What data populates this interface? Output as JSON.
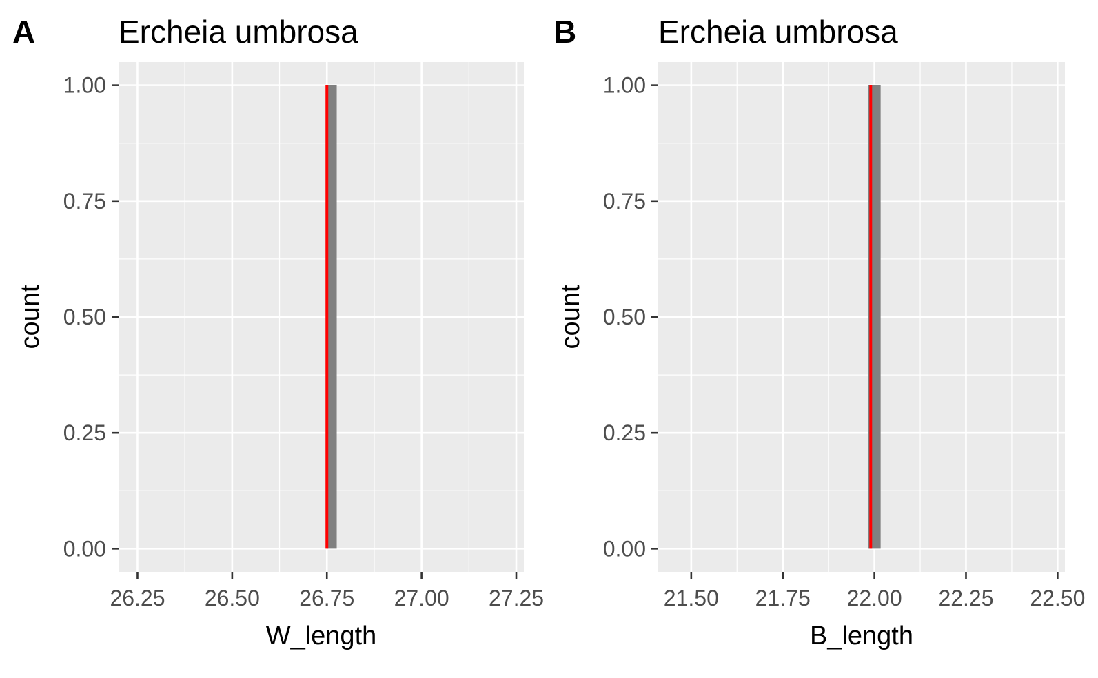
{
  "chart_data": [
    {
      "type": "bar",
      "panel_tag": "A",
      "title": "Ercheia umbrosa",
      "xlabel": "W_length",
      "ylabel": "count",
      "xlim": [
        26.2,
        27.27
      ],
      "ylim": [
        -0.05,
        1.05
      ],
      "x_ticks": [
        "26.25",
        "26.50",
        "26.75",
        "27.00",
        "27.25"
      ],
      "y_ticks": [
        "0.00",
        "0.25",
        "0.50",
        "0.75",
        "1.00"
      ],
      "bars": [
        {
          "x_start": 26.75,
          "x_end": 26.776,
          "count": 1
        }
      ],
      "reference_line": {
        "x": 26.75,
        "color": "#ff0000"
      },
      "bar_color": "#808080",
      "panel_background": "#ebebeb",
      "grid": true
    },
    {
      "type": "bar",
      "panel_tag": "B",
      "title": "Ercheia umbrosa",
      "xlabel": "B_length",
      "ylabel": "count",
      "xlim": [
        21.41,
        22.52
      ],
      "ylim": [
        -0.05,
        1.05
      ],
      "x_ticks": [
        "21.50",
        "21.75",
        "22.00",
        "22.25",
        "22.50"
      ],
      "y_ticks": [
        "0.00",
        "0.25",
        "0.50",
        "0.75",
        "1.00"
      ],
      "bars": [
        {
          "x_start": 21.983,
          "x_end": 22.017,
          "count": 1
        }
      ],
      "reference_line": {
        "x": 21.99,
        "color": "#ff0000"
      },
      "bar_color": "#808080",
      "panel_background": "#ebebeb",
      "grid": true
    }
  ]
}
